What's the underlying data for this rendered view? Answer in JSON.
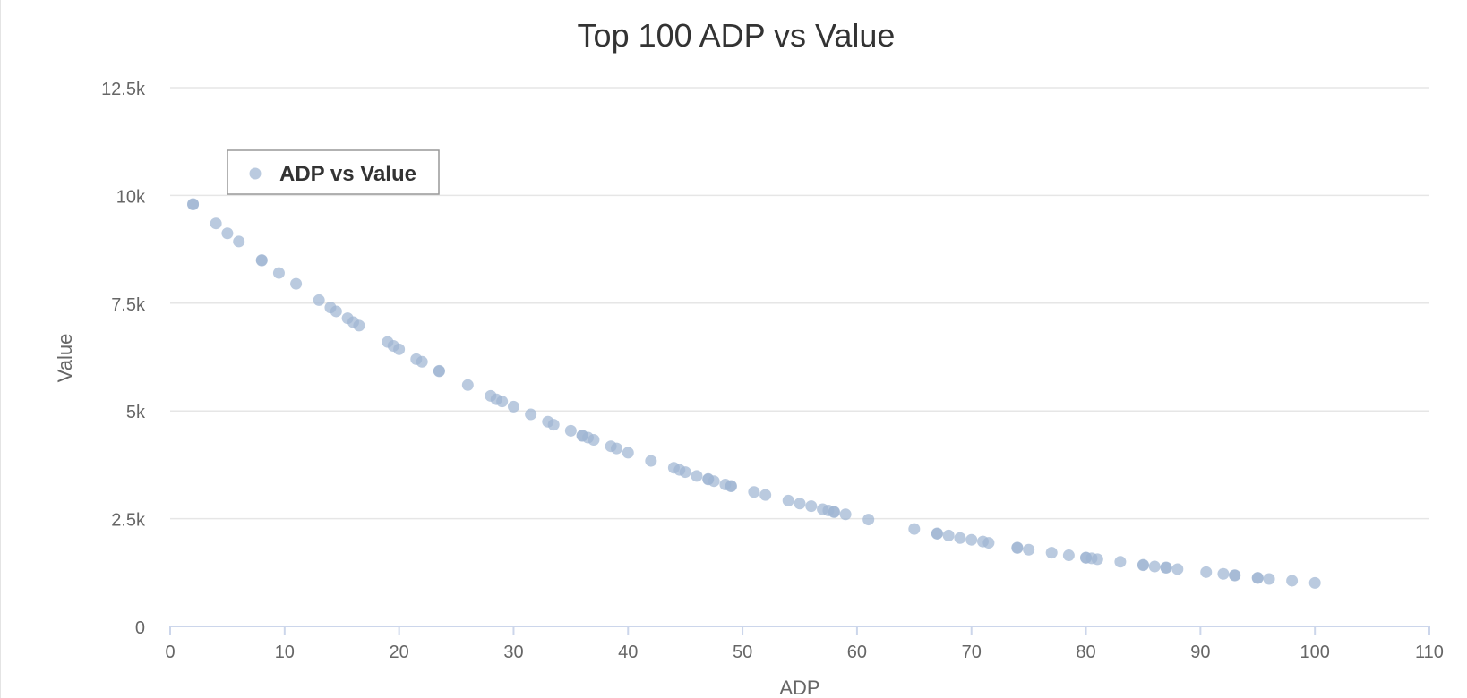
{
  "chart_data": {
    "type": "scatter",
    "title": "Top 100 ADP vs Value",
    "xlabel": "ADP",
    "ylabel": "Value",
    "xlim": [
      0,
      110
    ],
    "ylim": [
      0,
      12500
    ],
    "x_ticks": [
      0,
      10,
      20,
      30,
      40,
      50,
      60,
      70,
      80,
      90,
      100,
      110
    ],
    "x_tick_labels": [
      "0",
      "10",
      "20",
      "30",
      "40",
      "50",
      "60",
      "70",
      "80",
      "90",
      "100",
      "110"
    ],
    "y_ticks": [
      0,
      2500,
      5000,
      7500,
      10000,
      12500
    ],
    "y_tick_labels": [
      "0",
      "2.5k",
      "5k",
      "7.5k",
      "10k",
      "12.5k"
    ],
    "grid": "horizontal",
    "legend_position": "top-left",
    "series": [
      {
        "name": "ADP vs Value",
        "color": "#9fb6d2",
        "points": [
          [
            2,
            9800
          ],
          [
            2,
            9790
          ],
          [
            4,
            9350
          ],
          [
            5,
            9120
          ],
          [
            6,
            8930
          ],
          [
            8,
            8500
          ],
          [
            8,
            8490
          ],
          [
            9.5,
            8200
          ],
          [
            11,
            7950
          ],
          [
            13,
            7570
          ],
          [
            14,
            7400
          ],
          [
            14.5,
            7310
          ],
          [
            15.5,
            7150
          ],
          [
            16,
            7060
          ],
          [
            16.5,
            6980
          ],
          [
            19,
            6600
          ],
          [
            19.5,
            6510
          ],
          [
            20,
            6430
          ],
          [
            21.5,
            6200
          ],
          [
            22,
            6140
          ],
          [
            23.5,
            5930
          ],
          [
            23.5,
            5920
          ],
          [
            26,
            5600
          ],
          [
            28,
            5350
          ],
          [
            28.5,
            5270
          ],
          [
            29,
            5220
          ],
          [
            30,
            5100
          ],
          [
            31.5,
            4920
          ],
          [
            33,
            4750
          ],
          [
            33.5,
            4680
          ],
          [
            35,
            4540
          ],
          [
            36,
            4430
          ],
          [
            36,
            4420
          ],
          [
            36.5,
            4380
          ],
          [
            37,
            4330
          ],
          [
            38.5,
            4180
          ],
          [
            39,
            4130
          ],
          [
            40,
            4030
          ],
          [
            42,
            3840
          ],
          [
            44,
            3680
          ],
          [
            44.5,
            3630
          ],
          [
            45,
            3580
          ],
          [
            46,
            3490
          ],
          [
            47,
            3420
          ],
          [
            47,
            3410
          ],
          [
            47.5,
            3370
          ],
          [
            48.5,
            3290
          ],
          [
            49,
            3260
          ],
          [
            49,
            3250
          ],
          [
            51,
            3120
          ],
          [
            52,
            3050
          ],
          [
            54,
            2920
          ],
          [
            55,
            2850
          ],
          [
            56,
            2790
          ],
          [
            57,
            2720
          ],
          [
            57.5,
            2690
          ],
          [
            58,
            2660
          ],
          [
            58,
            2650
          ],
          [
            59,
            2600
          ],
          [
            61,
            2480
          ],
          [
            65,
            2260
          ],
          [
            67,
            2160
          ],
          [
            67,
            2150
          ],
          [
            68,
            2110
          ],
          [
            69,
            2050
          ],
          [
            70,
            2010
          ],
          [
            71,
            1970
          ],
          [
            71.5,
            1940
          ],
          [
            74,
            1830
          ],
          [
            74,
            1820
          ],
          [
            75,
            1780
          ],
          [
            77,
            1710
          ],
          [
            78.5,
            1650
          ],
          [
            80,
            1600
          ],
          [
            80,
            1590
          ],
          [
            80.5,
            1580
          ],
          [
            81,
            1560
          ],
          [
            83,
            1500
          ],
          [
            85,
            1430
          ],
          [
            85,
            1420
          ],
          [
            86,
            1390
          ],
          [
            87,
            1370
          ],
          [
            87,
            1360
          ],
          [
            88,
            1330
          ],
          [
            90.5,
            1260
          ],
          [
            92,
            1220
          ],
          [
            93,
            1190
          ],
          [
            93,
            1180
          ],
          [
            95,
            1130
          ],
          [
            95,
            1120
          ],
          [
            96,
            1100
          ],
          [
            98,
            1060
          ],
          [
            100,
            1010
          ]
        ]
      }
    ]
  }
}
